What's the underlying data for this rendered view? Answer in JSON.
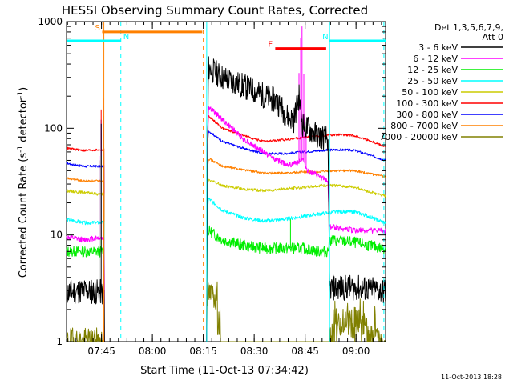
{
  "chart_data": {
    "type": "line",
    "title": "HESSI Observing Summary Count Rates, Corrected",
    "xlabel": "Start Time (11-Oct-13 07:34:42)",
    "ylabel_main": "Corrected Count Rate (s",
    "ylabel_sup1": "-1",
    "ylabel_mid": " detector",
    "ylabel_sup2": "-1",
    "ylabel_end": ")",
    "x_unit": "minutes since 07:34:42",
    "xlim": [
      0,
      94
    ],
    "ylim": [
      1,
      1000
    ],
    "yscale": "log",
    "grid": false,
    "timestamp": "11-Oct-2013 18:28",
    "x_ticks": [
      {
        "label": "07:45",
        "value": 10.3
      },
      {
        "label": "08:00",
        "value": 25.3
      },
      {
        "label": "08:15",
        "value": 40.3
      },
      {
        "label": "08:30",
        "value": 55.3
      },
      {
        "label": "08:45",
        "value": 70.3
      },
      {
        "label": "09:00",
        "value": 85.3
      }
    ],
    "y_ticks": [
      {
        "label": "1",
        "value": 1
      },
      {
        "label": "10",
        "value": 10
      },
      {
        "label": "100",
        "value": 100
      },
      {
        "label": "1000",
        "value": 1000
      }
    ],
    "legend": {
      "placement": "right",
      "header": [
        "Det 1,3,5,6,7,9,",
        "Att 0"
      ],
      "entries": [
        {
          "label": "3 - 6 keV",
          "color": "#000000"
        },
        {
          "label": "6 - 12 keV",
          "color": "#ff00ff"
        },
        {
          "label": "12 - 25 keV",
          "color": "#00ee00"
        },
        {
          "label": "25 - 50 keV",
          "color": "#00ffff"
        },
        {
          "label": "50 - 100 keV",
          "color": "#cccc00"
        },
        {
          "label": "100 - 300 keV",
          "color": "#ff0000"
        },
        {
          "label": "300 - 800 keV",
          "color": "#0000ff"
        },
        {
          "label": "800 - 7000 keV",
          "color": "#ff8000"
        },
        {
          "label": "7000 - 20000 keV",
          "color": "#808000"
        }
      ]
    },
    "flag_bars": [
      {
        "label": "S",
        "x_start": 10.5,
        "x_end": 40.0,
        "y": 800,
        "color": "#ff8000"
      },
      {
        "label": "N",
        "x_start": 0.0,
        "x_end": 16.0,
        "y": 660,
        "color": "#00ffff"
      },
      {
        "label": "N",
        "x_start": 77.5,
        "x_end": 94.0,
        "y": 660,
        "color": "#00ffff"
      },
      {
        "label": "F",
        "x_start": 61.5,
        "x_end": 76.5,
        "y": 560,
        "color": "#ff0000"
      }
    ],
    "vertical_lines": [
      {
        "x": 11.0,
        "color": "#ff8000",
        "style": "solid"
      },
      {
        "x": 16.0,
        "color": "#00ffff",
        "style": "dashed"
      },
      {
        "x": 40.3,
        "color": "#ff8000",
        "style": "dashed"
      },
      {
        "x": 41.3,
        "color": "#00ffff",
        "style": "solid"
      },
      {
        "x": 77.5,
        "color": "#00ffff",
        "style": "solid"
      },
      {
        "x": 93.5,
        "color": "#00ffff",
        "style": "dashed"
      }
    ],
    "series": [
      {
        "name": "3 - 6 keV",
        "color": "#000000",
        "gap": [
          11,
          41.3
        ],
        "noise": 0.28,
        "seed": 11,
        "points": [
          [
            0,
            2.9
          ],
          [
            5,
            3.0
          ],
          [
            10,
            2.9
          ],
          [
            11,
            2.8
          ],
          [
            41.3,
            3.0
          ],
          [
            41.8,
            370
          ],
          [
            46,
            300
          ],
          [
            52,
            250
          ],
          [
            57,
            210
          ],
          [
            62,
            180
          ],
          [
            65,
            130
          ],
          [
            67,
            120
          ],
          [
            68.5,
            200
          ],
          [
            69.5,
            110
          ],
          [
            72,
            95
          ],
          [
            74,
            85
          ],
          [
            77,
            80
          ],
          [
            77.5,
            3.2
          ],
          [
            85,
            3.2
          ],
          [
            93,
            3.0
          ],
          [
            94,
            2.9
          ]
        ],
        "spikes": [
          [
            9.6,
            50
          ],
          [
            10.2,
            110
          ],
          [
            10.8,
            130
          ]
        ]
      },
      {
        "name": "6 - 12 keV",
        "color": "#ff00ff",
        "gap": [
          11,
          41.3
        ],
        "noise": 0.06,
        "seed": 12,
        "points": [
          [
            0,
            9.5
          ],
          [
            5,
            9.0
          ],
          [
            10,
            9.5
          ],
          [
            11,
            9.0
          ],
          [
            41.3,
            9.0
          ],
          [
            41.8,
            160
          ],
          [
            46,
            120
          ],
          [
            52,
            80
          ],
          [
            58,
            60
          ],
          [
            62,
            50
          ],
          [
            66,
            45
          ],
          [
            68,
            48
          ],
          [
            69.5,
            52
          ],
          [
            71,
            40
          ],
          [
            74,
            36
          ],
          [
            77,
            32
          ],
          [
            77.5,
            12
          ],
          [
            85,
            11
          ],
          [
            93,
            11
          ],
          [
            94,
            11
          ]
        ],
        "spikes": [
          [
            9.6,
            55
          ],
          [
            10.2,
            110
          ],
          [
            10.8,
            150
          ],
          [
            68.5,
            330
          ],
          [
            69.0,
            700
          ],
          [
            69.4,
            900
          ],
          [
            69.9,
            320
          ],
          [
            70.6,
            90
          ]
        ]
      },
      {
        "name": "12 - 25 keV",
        "color": "#00ee00",
        "gap": [
          11,
          41.3
        ],
        "noise": 0.12,
        "seed": 13,
        "points": [
          [
            0,
            7.0
          ],
          [
            5,
            7.0
          ],
          [
            10,
            7.0
          ],
          [
            11,
            7.0
          ],
          [
            41.3,
            7.0
          ],
          [
            41.8,
            11
          ],
          [
            46,
            9
          ],
          [
            52,
            8
          ],
          [
            58,
            7.5
          ],
          [
            64,
            7.5
          ],
          [
            70,
            7.5
          ],
          [
            74,
            7
          ],
          [
            77,
            7
          ],
          [
            77.5,
            9
          ],
          [
            85,
            8.5
          ],
          [
            93,
            7.5
          ],
          [
            94,
            7.5
          ]
        ],
        "spikes": [
          [
            10.2,
            55
          ],
          [
            10.8,
            70
          ],
          [
            66.0,
            14
          ]
        ]
      },
      {
        "name": "25 - 50 keV",
        "color": "#00ffff",
        "gap": [
          11,
          41.3
        ],
        "noise": 0.04,
        "seed": 14,
        "points": [
          [
            0,
            14
          ],
          [
            5,
            13
          ],
          [
            10,
            13
          ],
          [
            11,
            13
          ],
          [
            41.3,
            13
          ],
          [
            41.8,
            22
          ],
          [
            46,
            17
          ],
          [
            52,
            14.5
          ],
          [
            58,
            13.5
          ],
          [
            64,
            14
          ],
          [
            70,
            15
          ],
          [
            76,
            16
          ],
          [
            80,
            16.5
          ],
          [
            85,
            16.5
          ],
          [
            90,
            14.5
          ],
          [
            94,
            13
          ]
        ],
        "spikes": [
          [
            10.2,
            55
          ],
          [
            10.8,
            80
          ]
        ]
      },
      {
        "name": "50 - 100 keV",
        "color": "#cccc00",
        "gap": [
          11,
          41.3
        ],
        "noise": 0.03,
        "seed": 15,
        "points": [
          [
            0,
            26
          ],
          [
            5,
            25
          ],
          [
            10,
            24
          ],
          [
            11,
            24
          ],
          [
            41.3,
            24
          ],
          [
            41.8,
            33
          ],
          [
            46,
            29
          ],
          [
            52,
            27
          ],
          [
            58,
            26
          ],
          [
            64,
            27
          ],
          [
            70,
            28
          ],
          [
            75,
            29
          ],
          [
            80,
            29
          ],
          [
            85,
            28
          ],
          [
            90,
            25
          ],
          [
            94,
            23
          ]
        ],
        "spikes": [
          [
            10.2,
            55
          ],
          [
            10.8,
            80
          ]
        ]
      },
      {
        "name": "100 - 300 keV",
        "color": "#ff0000",
        "gap": [
          11,
          41.3
        ],
        "noise": 0.025,
        "seed": 16,
        "points": [
          [
            0,
            65
          ],
          [
            5,
            62
          ],
          [
            10,
            63
          ],
          [
            11,
            63
          ],
          [
            41.3,
            63
          ],
          [
            41.8,
            130
          ],
          [
            46,
            100
          ],
          [
            52,
            86
          ],
          [
            58,
            75
          ],
          [
            64,
            78
          ],
          [
            70,
            82
          ],
          [
            75,
            85
          ],
          [
            80,
            87
          ],
          [
            85,
            85
          ],
          [
            90,
            75
          ],
          [
            94,
            67
          ]
        ],
        "spikes": [
          [
            10.2,
            150
          ],
          [
            10.8,
            190
          ]
        ]
      },
      {
        "name": "300 - 800 keV",
        "color": "#0000ff",
        "gap": [
          11,
          41.3
        ],
        "noise": 0.025,
        "seed": 17,
        "points": [
          [
            0,
            47
          ],
          [
            5,
            44
          ],
          [
            10,
            44
          ],
          [
            11,
            44
          ],
          [
            41.3,
            44
          ],
          [
            41.8,
            95
          ],
          [
            46,
            75
          ],
          [
            52,
            65
          ],
          [
            58,
            58
          ],
          [
            64,
            58
          ],
          [
            70,
            60
          ],
          [
            75,
            62
          ],
          [
            80,
            63
          ],
          [
            85,
            62
          ],
          [
            90,
            55
          ],
          [
            94,
            50
          ]
        ],
        "spikes": [
          [
            10.2,
            120
          ],
          [
            10.8,
            160
          ]
        ]
      },
      {
        "name": "800 - 7000 keV",
        "color": "#ff8000",
        "gap": [
          11,
          41.3
        ],
        "noise": 0.025,
        "seed": 18,
        "points": [
          [
            0,
            34
          ],
          [
            5,
            32
          ],
          [
            10,
            32
          ],
          [
            11,
            32
          ],
          [
            41.3,
            32
          ],
          [
            41.8,
            52
          ],
          [
            46,
            44
          ],
          [
            52,
            41
          ],
          [
            58,
            38
          ],
          [
            64,
            38
          ],
          [
            70,
            39
          ],
          [
            75,
            39
          ],
          [
            80,
            40
          ],
          [
            85,
            40
          ],
          [
            90,
            37
          ],
          [
            94,
            35
          ]
        ],
        "spikes": [
          [
            10.2,
            90
          ],
          [
            10.8,
            120
          ]
        ]
      },
      {
        "name": "7000 - 20000 keV",
        "color": "#808000",
        "gap": [
          11,
          77.5
        ],
        "noise": 0.3,
        "seed": 19,
        "points": [
          [
            0,
            1
          ],
          [
            11,
            1
          ],
          [
            41.3,
            1
          ],
          [
            77.5,
            1
          ],
          [
            94,
            1
          ]
        ],
        "steps": [
          [
            41.3,
            44.5,
            2.8
          ],
          [
            44.5,
            45.3,
            1.6
          ],
          [
            78.2,
            88.5,
            1.5
          ],
          [
            88.5,
            90.5,
            1.0
          ],
          [
            90.5,
            91.5,
            1.4
          ]
        ]
      }
    ]
  }
}
